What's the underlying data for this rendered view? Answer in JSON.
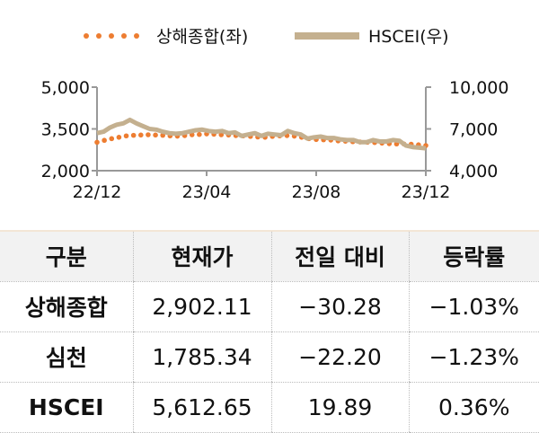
{
  "chart_data": {
    "type": "line",
    "x_ticks": [
      "22/12",
      "23/04",
      "23/08",
      "23/12"
    ],
    "y_left": {
      "ticks": [
        "5,000",
        "3,500",
        "2,000"
      ],
      "range": [
        2000,
        5000
      ]
    },
    "y_right": {
      "ticks": [
        "10,000",
        "7,000",
        "4,000"
      ],
      "range": [
        4000,
        10000
      ]
    },
    "legend_position": "top",
    "series": [
      {
        "name": "상해종합(좌)",
        "axis": "left",
        "style": "dotted",
        "color": "#ed7d31",
        "values": [
          3020,
          3090,
          3150,
          3200,
          3250,
          3270,
          3280,
          3290,
          3280,
          3270,
          3250,
          3240,
          3260,
          3290,
          3300,
          3320,
          3310,
          3290,
          3280,
          3260,
          3250,
          3230,
          3210,
          3200,
          3230,
          3250,
          3260,
          3240,
          3200,
          3150,
          3120,
          3110,
          3100,
          3070,
          3060,
          3040,
          3030,
          3020,
          3010,
          2990,
          2970,
          2960,
          2960,
          2950,
          2930,
          2902
        ]
      },
      {
        "name": "HSCEI(우)",
        "axis": "right",
        "style": "solid",
        "color": "#c4b08f",
        "values": [
          6700,
          6800,
          7100,
          7300,
          7400,
          7650,
          7400,
          7200,
          7000,
          6950,
          6800,
          6700,
          6650,
          6700,
          6800,
          6900,
          6950,
          6850,
          6800,
          6850,
          6700,
          6750,
          6500,
          6600,
          6700,
          6500,
          6650,
          6600,
          6550,
          6850,
          6700,
          6600,
          6300,
          6400,
          6450,
          6350,
          6350,
          6250,
          6200,
          6200,
          6050,
          6050,
          6200,
          6100,
          6100,
          6200,
          6150,
          5800,
          5700,
          5650,
          5600
        ]
      }
    ]
  },
  "table": {
    "headers": [
      "구분",
      "현재가",
      "전일 대비",
      "등락률"
    ],
    "rows": [
      [
        "상해종합",
        "2,902.11",
        "−30.28",
        "−1.03%"
      ],
      [
        "심천",
        "1,785.34",
        "−22.20",
        "−1.23%"
      ],
      [
        "HSCEI",
        "5,612.65",
        "19.89",
        "0.36%"
      ]
    ]
  }
}
